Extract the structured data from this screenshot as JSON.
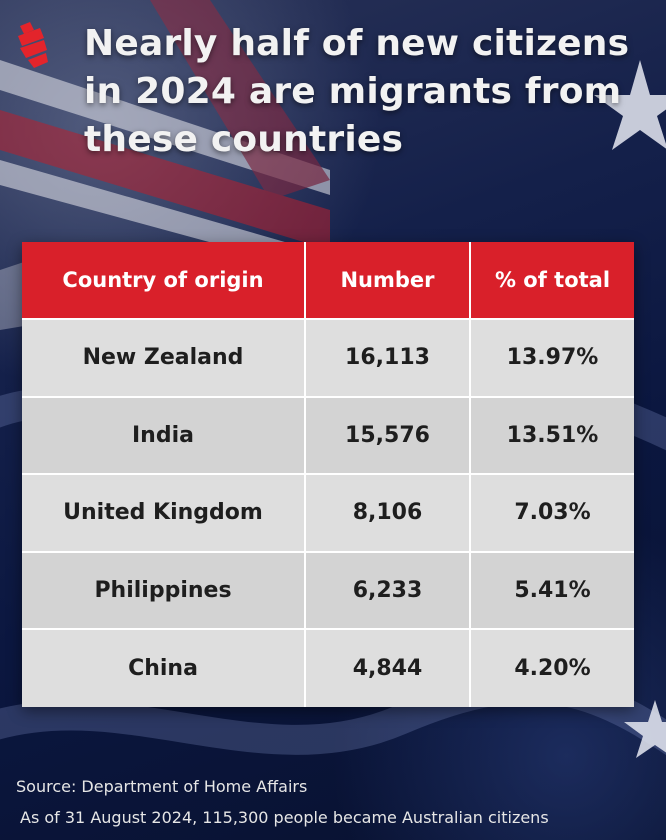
{
  "title": "Nearly half of new citizens in 2024 are migrants from these countries",
  "chart_data": {
    "type": "table",
    "columns": [
      "Country of origin",
      "Number",
      "% of total"
    ],
    "rows": [
      [
        "New Zealand",
        "16,113",
        "13.97%"
      ],
      [
        "India",
        "15,576",
        "13.51%"
      ],
      [
        "United Kingdom",
        "8,106",
        "7.03%"
      ],
      [
        "Philippines",
        "6,233",
        "5.41%"
      ],
      [
        "China",
        "4,844",
        "4.20%"
      ]
    ]
  },
  "footer": {
    "source": "Source: Department of Home Affairs",
    "note": "As of 31 August 2024, 115,300 people became Australian citizens"
  },
  "colors": {
    "header_bg": "#d9202a",
    "row_bg": "#dedede",
    "background": "#0b1740",
    "logo": "#e3242b"
  },
  "icons": {
    "logo": "broadcaster-logo-icon",
    "background": "australian-flag-background"
  }
}
